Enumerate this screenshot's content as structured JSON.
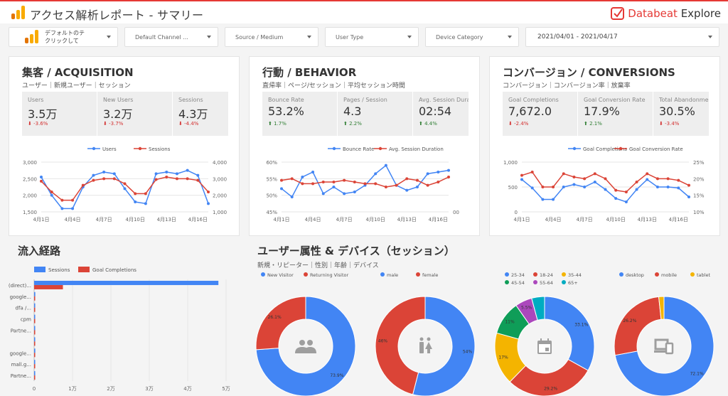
{
  "header": {
    "title": "アクセス解析レポート - サマリー",
    "brand_a": "Databeat",
    "brand_b": " Explore"
  },
  "filters": {
    "account_line1": "デフォルトのテ",
    "account_line2": "クリックして",
    "channel": "Default Channel ...",
    "source": "Source / Medium",
    "usertype": "User Type",
    "device": "Device Category",
    "date": "2021/04/01 - 2021/04/17"
  },
  "acquisition": {
    "title": "集客 / ACQUISITION",
    "subtitle": "ユーザー｜新規ユーザー｜セッション",
    "kpis": [
      {
        "label": "Users",
        "value": "3.5万",
        "delta": "-3.6%",
        "dir": "down"
      },
      {
        "label": "New Users",
        "value": "3.2万",
        "delta": "-3.7%",
        "dir": "down"
      },
      {
        "label": "Sessions",
        "value": "4.3万",
        "delta": "-4.4%",
        "dir": "down"
      }
    ]
  },
  "behavior": {
    "title": "行動 / BEHAVIOR",
    "subtitle": "直帰率｜ページ/セッション｜平均セッション時間",
    "kpis": [
      {
        "label": "Bounce Rate",
        "value": "53.2%",
        "delta": "1.7%",
        "dir": "up"
      },
      {
        "label": "Pages / Session",
        "value": "4.3",
        "delta": "2.2%",
        "dir": "up"
      },
      {
        "label": "Avg. Session Duration",
        "value": "02:54",
        "delta": "4.4%",
        "dir": "up"
      }
    ]
  },
  "conversions": {
    "title": "コンバージョン / CONVERSIONS",
    "subtitle": "コンバージョン｜コンバージョン率｜放棄率",
    "kpis": [
      {
        "label": "Goal Completions",
        "value": "7,672.0",
        "delta": "-2.4%",
        "dir": "down"
      },
      {
        "label": "Goal Conversion Rate",
        "value": "17.9%",
        "delta": "2.1%",
        "dir": "up"
      },
      {
        "label": "Total Abandonment Rate",
        "value": "30.5%",
        "delta": "-3.4%",
        "dir": "down"
      }
    ]
  },
  "traffic": {
    "title": "流入経路"
  },
  "demographics": {
    "title": "ユーザー属性 & デバイス（セッション）",
    "subtitle": "新規・リピーター｜性別｜年齢｜デバイス"
  },
  "colors": {
    "blue": "#4285f4",
    "red": "#db4437",
    "yellow": "#f4b400",
    "green": "#0f9d58",
    "purple": "#ab47bc",
    "teal": "#00acc1",
    "accent": "#e53935"
  },
  "chart_data": [
    {
      "type": "line",
      "x": [
        "4月1日",
        "4月2日",
        "4月3日",
        "4月4日",
        "4月5日",
        "4月6日",
        "4月7日",
        "4月8日",
        "4月9日",
        "4月10日",
        "4月11日",
        "4月12日",
        "4月13日",
        "4月14日",
        "4月15日",
        "4月16日",
        "4月17日"
      ],
      "x_ticks": [
        "4月1日",
        "4月4日",
        "4月7日",
        "4月10日",
        "4月13日",
        "4月16日"
      ],
      "series": [
        {
          "name": "Users",
          "axis": "left",
          "values": [
            2550,
            2000,
            1600,
            1600,
            2250,
            2600,
            2700,
            2650,
            2200,
            1800,
            1750,
            2650,
            2700,
            2650,
            2750,
            2600,
            1750
          ]
        },
        {
          "name": "Sessions",
          "axis": "right",
          "values": [
            2850,
            2200,
            1700,
            1700,
            2600,
            2900,
            3000,
            3000,
            2700,
            2100,
            2100,
            2950,
            3100,
            3000,
            3000,
            2900,
            2200
          ]
        }
      ],
      "ylim_left": [
        1500,
        3000
      ],
      "yticks_left": [
        "1,500",
        "2,000",
        "2,500",
        "3,000"
      ],
      "ylim_right": [
        1000,
        4000
      ],
      "yticks_right": [
        "1,000",
        "2,000",
        "3,000",
        "4,000"
      ]
    },
    {
      "type": "line",
      "x": [
        "4月1日",
        "4月2日",
        "4月3日",
        "4月4日",
        "4月5日",
        "4月6日",
        "4月7日",
        "4月8日",
        "4月9日",
        "4月10日",
        "4月11日",
        "4月12日",
        "4月13日",
        "4月14日",
        "4月15日",
        "4月16日",
        "4月17日"
      ],
      "x_ticks": [
        "4月1日",
        "4月4日",
        "4月7日",
        "4月10日",
        "4月13日",
        "4月16日"
      ],
      "series": [
        {
          "name": "Bounce Rate",
          "axis": "left",
          "values": [
            52,
            49.5,
            55.5,
            57,
            50.5,
            52.5,
            50.5,
            51,
            53,
            56.5,
            59,
            53,
            51.5,
            52.5,
            56.5,
            57,
            57.5
          ]
        },
        {
          "name": "Avg. Session Duration",
          "axis": "right",
          "values": [
            54.5,
            55,
            53.5,
            53.5,
            54,
            54,
            54.5,
            54,
            53.5,
            53.5,
            52.5,
            53,
            55,
            54.5,
            53,
            54,
            55.5
          ]
        }
      ],
      "ylim_left": [
        45,
        60
      ],
      "yticks_left": [
        "45%",
        "50%",
        "55%",
        "60%"
      ],
      "yticks_right": [
        "00"
      ]
    },
    {
      "type": "line",
      "x": [
        "4月1日",
        "4月2日",
        "4月3日",
        "4月4日",
        "4月5日",
        "4月6日",
        "4月7日",
        "4月8日",
        "4月9日",
        "4月10日",
        "4月11日",
        "4月12日",
        "4月13日",
        "4月14日",
        "4月15日",
        "4月16日",
        "4月17日"
      ],
      "x_ticks": [
        "4月1日",
        "4月4日",
        "4月7日",
        "4月10日",
        "4月13日",
        "4月16日"
      ],
      "series": [
        {
          "name": "Goal Completions",
          "axis": "left",
          "values": [
            650,
            480,
            250,
            250,
            500,
            550,
            500,
            600,
            450,
            270,
            200,
            450,
            650,
            500,
            500,
            480,
            300
          ]
        },
        {
          "name": "Goal Conversion Rate",
          "axis": "right",
          "values": [
            21,
            22,
            17.5,
            17.5,
            21.5,
            20.5,
            20,
            21.5,
            20,
            16.5,
            16,
            19,
            21.5,
            20,
            20,
            19.5,
            18
          ]
        }
      ],
      "ylim_left": [
        0,
        1000
      ],
      "yticks_left": [
        "0",
        "500",
        "1,000"
      ],
      "ylim_right": [
        10,
        25
      ],
      "yticks_right": [
        "10%",
        "15%",
        "20%",
        "25%"
      ]
    },
    {
      "type": "bar",
      "orientation": "horizontal",
      "categories": [
        "(direct)...",
        "google...",
        "dfa /...",
        "cpm",
        "Partne...",
        "",
        "google...",
        "mall.g...",
        "Partne..."
      ],
      "series": [
        {
          "name": "Sessions",
          "values": [
            48000,
            300,
            200,
            150,
            100,
            100,
            300,
            100,
            50
          ]
        },
        {
          "name": "Goal Completions",
          "values": [
            7500,
            50,
            30,
            20,
            10,
            10,
            30,
            10,
            5
          ]
        }
      ],
      "xlim": [
        0,
        50000
      ],
      "xticks": [
        "0",
        "1万",
        "2万",
        "3万",
        "4万",
        "5万"
      ]
    },
    {
      "type": "pie",
      "donut": true,
      "labels": [
        "New Visitor",
        "Returning Visitor"
      ],
      "values": [
        73.9,
        26.1
      ],
      "value_labels": [
        "73.9%",
        "26.1%"
      ]
    },
    {
      "type": "pie",
      "donut": true,
      "labels": [
        "male",
        "female"
      ],
      "values": [
        54,
        46
      ],
      "value_labels": [
        "54%",
        "46%"
      ]
    },
    {
      "type": "pie",
      "donut": true,
      "labels": [
        "25-34",
        "18-24",
        "35-44",
        "45-54",
        "55-64",
        "65+"
      ],
      "values": [
        33.1,
        29.2,
        17,
        11,
        5.5,
        4.2
      ],
      "value_labels": [
        "33.1%",
        "29.2%",
        "17%",
        "11%",
        "5.5%",
        ""
      ]
    },
    {
      "type": "pie",
      "donut": true,
      "labels": [
        "desktop",
        "mobile",
        "tablet"
      ],
      "values": [
        72.1,
        26.2,
        1.7
      ],
      "value_labels": [
        "72.1%",
        "26.2%",
        ""
      ]
    }
  ]
}
